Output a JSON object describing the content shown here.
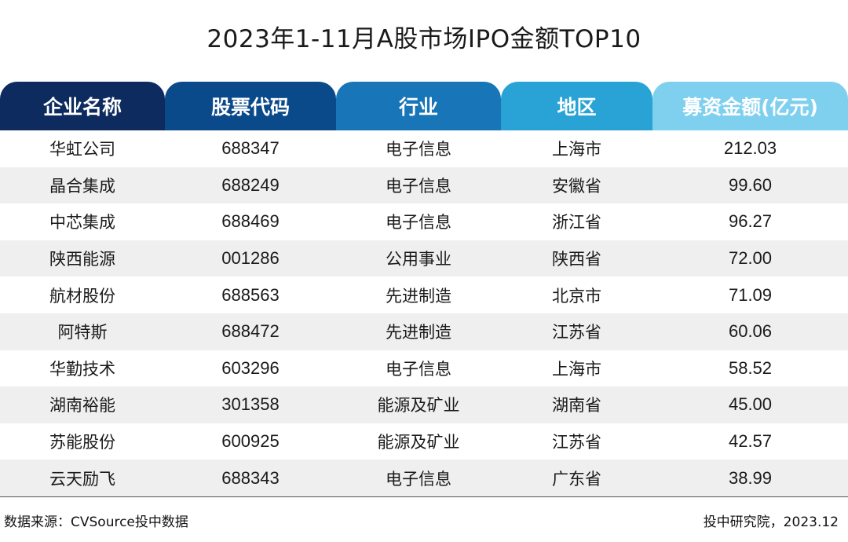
{
  "title": "2023年1-11月A股市场IPO金额TOP10",
  "chart_data": {
    "type": "table",
    "title": "2023年1-11月A股市场IPO金额TOP10",
    "columns": [
      "企业名称",
      "股票代码",
      "行业",
      "地区",
      "募资金额(亿元)"
    ],
    "header_colors": [
      "#0d2b5e",
      "#0b4a8a",
      "#1775b8",
      "#29a3d6",
      "#7fd0ef"
    ],
    "rows": [
      [
        "华虹公司",
        "688347",
        "电子信息",
        "上海市",
        "212.03"
      ],
      [
        "晶合集成",
        "688249",
        "电子信息",
        "安徽省",
        "99.60"
      ],
      [
        "中芯集成",
        "688469",
        "电子信息",
        "浙江省",
        "96.27"
      ],
      [
        "陕西能源",
        "001286",
        "公用事业",
        "陕西省",
        "72.00"
      ],
      [
        "航材股份",
        "688563",
        "先进制造",
        "北京市",
        "71.09"
      ],
      [
        "阿特斯",
        "688472",
        "先进制造",
        "江苏省",
        "60.06"
      ],
      [
        "华勤技术",
        "603296",
        "电子信息",
        "上海市",
        "58.52"
      ],
      [
        "湖南裕能",
        "301358",
        "能源及矿业",
        "湖南省",
        "45.00"
      ],
      [
        "苏能股份",
        "600925",
        "能源及矿业",
        "江苏省",
        "42.57"
      ],
      [
        "云天励飞",
        "688343",
        "电子信息",
        "广东省",
        "38.99"
      ]
    ]
  },
  "footer": {
    "source": "数据来源：CVSource投中数据",
    "credit": "投中研究院，2023.12"
  }
}
